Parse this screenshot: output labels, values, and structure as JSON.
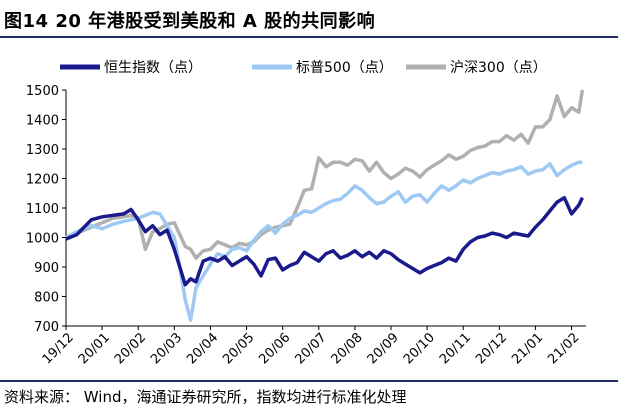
{
  "header": {
    "title": "图14 20 年港股受到美股和 A 股的共同影响"
  },
  "footer": {
    "source": "资料来源：  Wind，海通证券研究所，指数均进行标准化处理"
  },
  "chart_data": {
    "type": "line",
    "title": "图14 20 年港股受到美股和 A 股的共同影响",
    "xlabel": "",
    "ylabel": "",
    "ylim": [
      700,
      1500
    ],
    "yticks": [
      700,
      800,
      900,
      1000,
      1100,
      1200,
      1300,
      1400,
      1500
    ],
    "xlim": [
      0,
      14.4
    ],
    "xticks": [
      "19/12",
      "20/01",
      "20/02",
      "20/03",
      "20/04",
      "20/05",
      "20/06",
      "20/07",
      "20/08",
      "20/09",
      "20/10",
      "20/11",
      "20/12",
      "21/01",
      "21/02"
    ],
    "legend_position": "top",
    "grid": false,
    "series": [
      {
        "name": "恒生指数（点）",
        "color": "#1a1a8c",
        "x": [
          0,
          0.3,
          0.7,
          1.0,
          1.3,
          1.6,
          1.8,
          2.0,
          2.2,
          2.4,
          2.6,
          2.8,
          3.0,
          3.15,
          3.3,
          3.45,
          3.6,
          3.8,
          4.0,
          4.2,
          4.4,
          4.6,
          4.8,
          5.0,
          5.2,
          5.4,
          5.6,
          5.8,
          6.0,
          6.2,
          6.4,
          6.6,
          6.8,
          7.0,
          7.2,
          7.4,
          7.6,
          7.8,
          8.0,
          8.2,
          8.4,
          8.6,
          8.8,
          9.0,
          9.2,
          9.4,
          9.6,
          9.8,
          10.0,
          10.2,
          10.4,
          10.6,
          10.8,
          11.0,
          11.2,
          11.4,
          11.6,
          11.8,
          12.0,
          12.2,
          12.4,
          12.6,
          12.8,
          13.0,
          13.2,
          13.4,
          13.6,
          13.8,
          14.0,
          14.2,
          14.3
        ],
        "values": [
          995,
          1010,
          1060,
          1070,
          1075,
          1080,
          1095,
          1060,
          1020,
          1040,
          1010,
          1025,
          960,
          900,
          840,
          860,
          850,
          920,
          930,
          920,
          935,
          905,
          920,
          935,
          910,
          870,
          925,
          930,
          890,
          905,
          915,
          950,
          935,
          920,
          945,
          955,
          930,
          940,
          955,
          935,
          950,
          930,
          955,
          945,
          925,
          910,
          895,
          880,
          895,
          905,
          915,
          930,
          920,
          960,
          985,
          1000,
          1005,
          1015,
          1010,
          1000,
          1015,
          1010,
          1005,
          1035,
          1060,
          1090,
          1120,
          1135,
          1080,
          1110,
          1135
        ]
      },
      {
        "name": "标普500（点）",
        "color": "#9ec9f2",
        "x": [
          0,
          0.3,
          0.7,
          1.0,
          1.3,
          1.6,
          1.8,
          2.0,
          2.2,
          2.4,
          2.6,
          2.8,
          3.0,
          3.15,
          3.3,
          3.45,
          3.6,
          3.8,
          4.0,
          4.2,
          4.4,
          4.6,
          4.8,
          5.0,
          5.2,
          5.4,
          5.6,
          5.8,
          6.0,
          6.2,
          6.4,
          6.6,
          6.8,
          7.0,
          7.2,
          7.4,
          7.6,
          7.8,
          8.0,
          8.2,
          8.4,
          8.6,
          8.8,
          9.0,
          9.2,
          9.4,
          9.6,
          9.8,
          10.0,
          10.2,
          10.4,
          10.6,
          10.8,
          11.0,
          11.2,
          11.4,
          11.6,
          11.8,
          12.0,
          12.2,
          12.4,
          12.6,
          12.8,
          13.0,
          13.2,
          13.4,
          13.6,
          13.8,
          14.0,
          14.2,
          14.3
        ],
        "values": [
          1000,
          1020,
          1040,
          1030,
          1045,
          1055,
          1060,
          1065,
          1075,
          1085,
          1080,
          1040,
          1000,
          900,
          790,
          720,
          830,
          870,
          910,
          945,
          935,
          960,
          965,
          955,
          990,
          1020,
          1040,
          1015,
          1045,
          1065,
          1075,
          1090,
          1085,
          1100,
          1115,
          1125,
          1130,
          1150,
          1175,
          1160,
          1135,
          1115,
          1120,
          1140,
          1155,
          1120,
          1140,
          1145,
          1120,
          1150,
          1175,
          1160,
          1175,
          1195,
          1185,
          1200,
          1210,
          1220,
          1215,
          1225,
          1230,
          1240,
          1215,
          1225,
          1230,
          1250,
          1210,
          1230,
          1245,
          1255,
          1255
        ]
      },
      {
        "name": "沪深300（点）",
        "color": "#b0b0b0",
        "x": [
          0,
          0.3,
          0.7,
          1.0,
          1.3,
          1.6,
          1.8,
          2.0,
          2.2,
          2.4,
          2.6,
          2.8,
          3.0,
          3.15,
          3.3,
          3.45,
          3.6,
          3.8,
          4.0,
          4.2,
          4.4,
          4.6,
          4.8,
          5.0,
          5.2,
          5.4,
          5.6,
          5.8,
          6.0,
          6.2,
          6.4,
          6.6,
          6.8,
          7.0,
          7.2,
          7.4,
          7.6,
          7.8,
          8.0,
          8.2,
          8.4,
          8.6,
          8.8,
          9.0,
          9.2,
          9.4,
          9.6,
          9.8,
          10.0,
          10.2,
          10.4,
          10.6,
          10.8,
          11.0,
          11.2,
          11.4,
          11.6,
          11.8,
          12.0,
          12.2,
          12.4,
          12.6,
          12.8,
          13.0,
          13.2,
          13.4,
          13.6,
          13.8,
          14.0,
          14.2,
          14.3
        ],
        "values": [
          1000,
          1015,
          1035,
          1050,
          1065,
          1070,
          1075,
          1065,
          960,
          1020,
          1030,
          1045,
          1050,
          1010,
          970,
          960,
          930,
          955,
          960,
          985,
          975,
          965,
          980,
          975,
          985,
          1010,
          1025,
          1035,
          1040,
          1045,
          1100,
          1160,
          1165,
          1270,
          1240,
          1255,
          1255,
          1245,
          1265,
          1260,
          1225,
          1255,
          1220,
          1200,
          1215,
          1235,
          1225,
          1205,
          1230,
          1245,
          1260,
          1280,
          1265,
          1275,
          1295,
          1305,
          1310,
          1325,
          1325,
          1345,
          1330,
          1350,
          1320,
          1375,
          1375,
          1400,
          1480,
          1410,
          1440,
          1425,
          1500
        ]
      }
    ]
  }
}
